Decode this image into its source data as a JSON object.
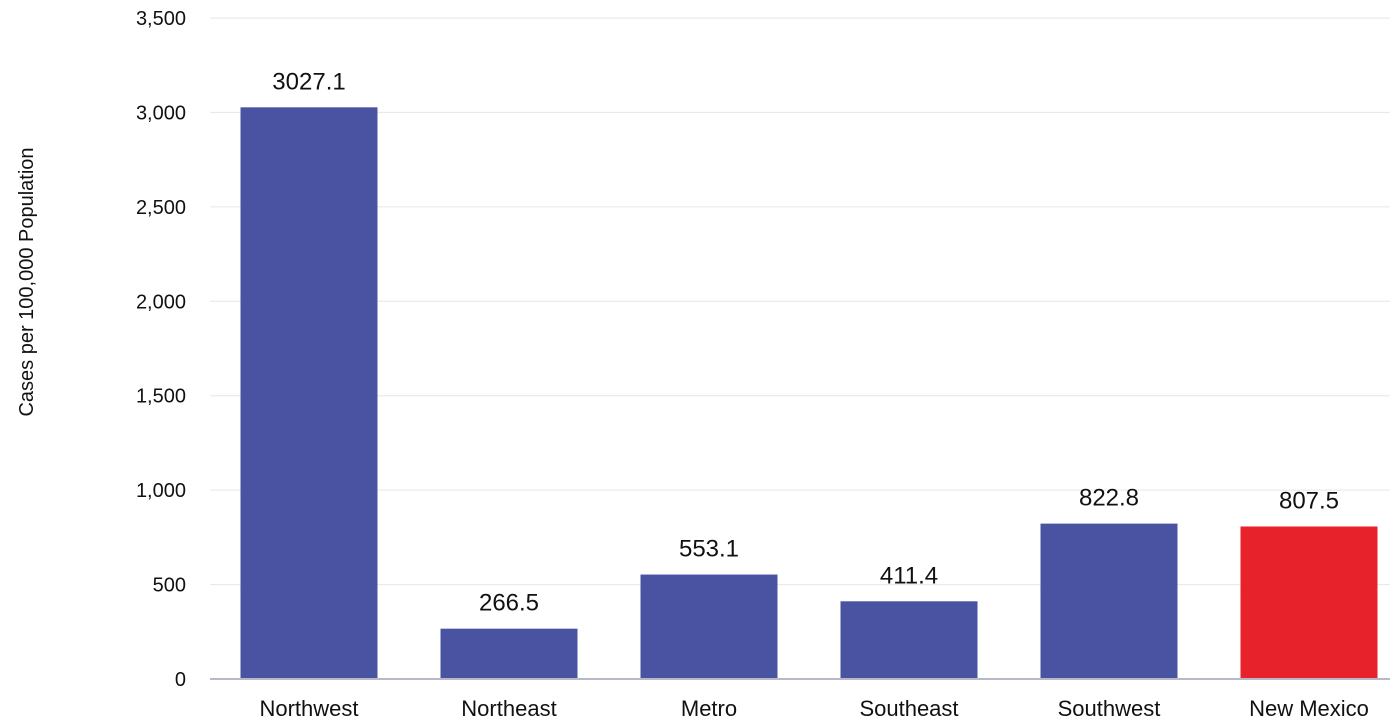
{
  "chart_data": {
    "type": "bar",
    "title": "",
    "xlabel": "",
    "ylabel": "Cases per 100,000 Population",
    "categories": [
      "Northwest",
      "Northeast",
      "Metro",
      "Southeast",
      "Southwest",
      "New Mexico"
    ],
    "values": [
      3027.1,
      266.5,
      553.1,
      411.4,
      822.8,
      807.5
    ],
    "data_labels": [
      "3027.1",
      "266.5",
      "553.1",
      "411.4",
      "822.8",
      "807.5"
    ],
    "ylim": [
      0,
      3500
    ],
    "yticks": [
      0,
      500,
      1000,
      1500,
      2000,
      2500,
      3000,
      3500
    ],
    "ytick_labels": [
      "0",
      "500",
      "1,000",
      "1,500",
      "2,000",
      "2,500",
      "3,000",
      "3,500"
    ],
    "grid": true,
    "legend": "none",
    "colors": {
      "bar": "#4a53a1",
      "highlight": "#e8222a",
      "grid": "#e6e6e6",
      "axis": "#b8b8c8"
    },
    "highlight_category": "New Mexico"
  }
}
